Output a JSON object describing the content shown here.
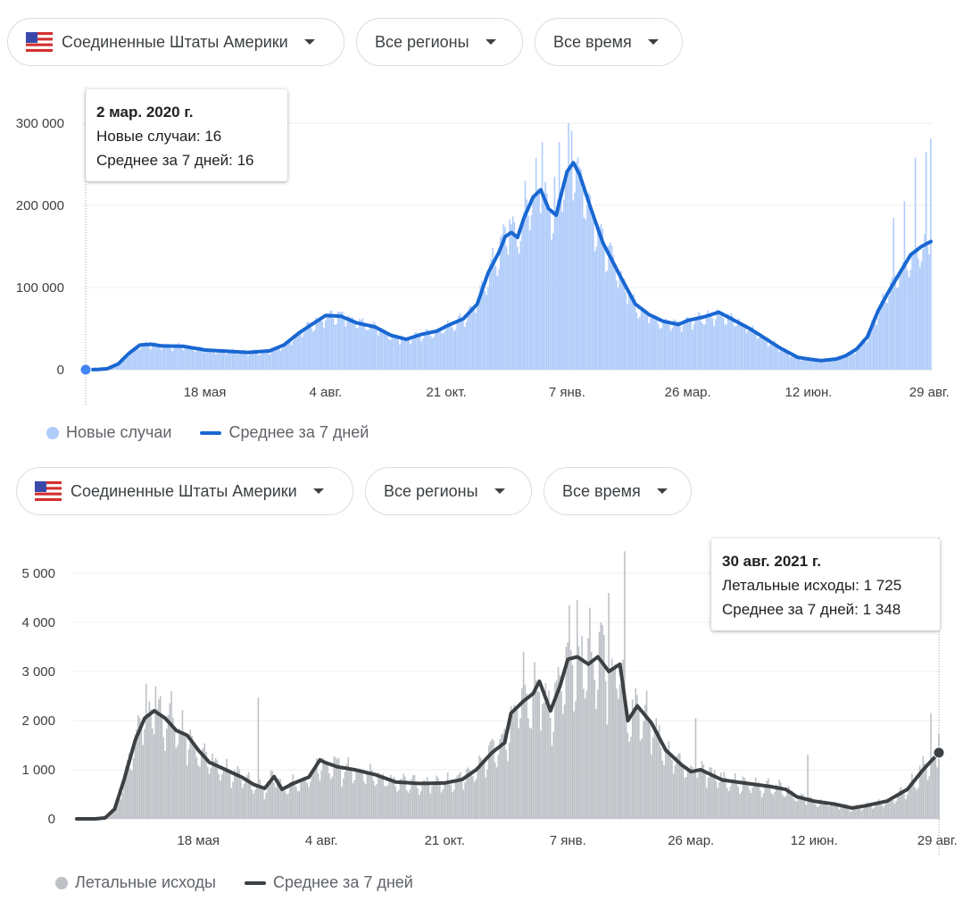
{
  "panel1": {
    "filters": {
      "country": "Соединенные Штаты Америки",
      "region": "Все регионы",
      "period": "Все время"
    },
    "tooltip": {
      "title": "2 мар. 2020 г.",
      "line1": "Новые случаи: 16",
      "line2": "Среднее за 7 дней: 16"
    },
    "legend": {
      "bars": "Новые случаи",
      "line": "Среднее за 7 дней"
    },
    "colors": {
      "bars": "#aecbfa",
      "line": "#1967d2",
      "marker": "#4285f4"
    }
  },
  "panel2": {
    "filters": {
      "country": "Соединенные Штаты Америки",
      "region": "Все регионы",
      "period": "Все время"
    },
    "tooltip": {
      "title": "30 авг. 2021 г.",
      "line1": "Летальные исходы: 1 725",
      "line2": "Среднее за 7 дней: 1 348"
    },
    "legend": {
      "bars": "Летальные исходы",
      "line": "Среднее за 7 дней"
    },
    "colors": {
      "bars": "#bdc1c6",
      "line": "#3c4043",
      "marker": "#3c4043"
    }
  },
  "chart_data": [
    {
      "type": "bar",
      "title": "",
      "x_start": "2020-03-02",
      "x_end": "2021-08-30",
      "x_tick_labels": [
        "18 мая",
        "4 авг.",
        "21 окт.",
        "7 янв.",
        "26 мар.",
        "12 июн.",
        "29 авг."
      ],
      "x_tick_dates": [
        "2020-05-18",
        "2020-08-04",
        "2020-10-21",
        "2021-01-07",
        "2021-03-26",
        "2021-06-12",
        "2021-08-29"
      ],
      "y_ticks": [
        0,
        100000,
        200000,
        300000
      ],
      "y_tick_labels": [
        "0",
        "100 000",
        "200 000",
        "300 000"
      ],
      "ylim": [
        0,
        300000
      ],
      "grid": true,
      "legend_position": "bottom-left",
      "highlight_date": "2020-03-02",
      "series": [
        {
          "name": "Среднее за 7 дней",
          "kind": "line",
          "points": [
            [
              "2020-03-02",
              16
            ],
            [
              "2020-03-09",
              200
            ],
            [
              "2020-03-16",
              1200
            ],
            [
              "2020-03-23",
              7000
            ],
            [
              "2020-03-30",
              20000
            ],
            [
              "2020-04-06",
              30000
            ],
            [
              "2020-04-13",
              31000
            ],
            [
              "2020-04-20",
              29000
            ],
            [
              "2020-05-04",
              28500
            ],
            [
              "2020-05-18",
              24000
            ],
            [
              "2020-06-01",
              22500
            ],
            [
              "2020-06-15",
              21000
            ],
            [
              "2020-06-29",
              23000
            ],
            [
              "2020-07-08",
              30000
            ],
            [
              "2020-07-18",
              45000
            ],
            [
              "2020-07-26",
              55000
            ],
            [
              "2020-08-04",
              66000
            ],
            [
              "2020-08-14",
              65000
            ],
            [
              "2020-08-24",
              57000
            ],
            [
              "2020-09-05",
              52000
            ],
            [
              "2020-09-15",
              42000
            ],
            [
              "2020-09-25",
              37000
            ],
            [
              "2020-10-05",
              43000
            ],
            [
              "2020-10-15",
              47000
            ],
            [
              "2020-10-21",
              53000
            ],
            [
              "2020-11-01",
              62000
            ],
            [
              "2020-11-10",
              80000
            ],
            [
              "2020-11-17",
              118000
            ],
            [
              "2020-11-24",
              143000
            ],
            [
              "2020-11-28",
              162000
            ],
            [
              "2020-12-02",
              167000
            ],
            [
              "2020-12-06",
              161000
            ],
            [
              "2020-12-10",
              184000
            ],
            [
              "2020-12-16",
              210000
            ],
            [
              "2020-12-21",
              219000
            ],
            [
              "2020-12-26",
              196000
            ],
            [
              "2020-12-31",
              188000
            ],
            [
              "2021-01-03",
              212000
            ],
            [
              "2021-01-07",
              241000
            ],
            [
              "2021-01-11",
              252000
            ],
            [
              "2021-01-15",
              238000
            ],
            [
              "2021-01-22",
              198000
            ],
            [
              "2021-01-30",
              155000
            ],
            [
              "2021-02-10",
              115000
            ],
            [
              "2021-02-20",
              80000
            ],
            [
              "2021-03-01",
              67000
            ],
            [
              "2021-03-10",
              59000
            ],
            [
              "2021-03-20",
              55000
            ],
            [
              "2021-03-26",
              60000
            ],
            [
              "2021-04-05",
              64000
            ],
            [
              "2021-04-15",
              70000
            ],
            [
              "2021-04-25",
              60000
            ],
            [
              "2021-05-05",
              50000
            ],
            [
              "2021-05-15",
              38000
            ],
            [
              "2021-05-25",
              26000
            ],
            [
              "2021-06-05",
              15000
            ],
            [
              "2021-06-12",
              13000
            ],
            [
              "2021-06-20",
              11000
            ],
            [
              "2021-06-30",
              13000
            ],
            [
              "2021-07-06",
              17000
            ],
            [
              "2021-07-13",
              25000
            ],
            [
              "2021-07-20",
              40000
            ],
            [
              "2021-07-27",
              72000
            ],
            [
              "2021-08-03",
              96000
            ],
            [
              "2021-08-10",
              118000
            ],
            [
              "2021-08-17",
              140000
            ],
            [
              "2021-08-24",
              150000
            ],
            [
              "2021-08-30",
              156000
            ]
          ]
        },
        {
          "name": "Новые случаи",
          "kind": "bars",
          "spikes": [
            [
              "2020-12-01",
              183000
            ],
            [
              "2020-12-11",
              230000
            ],
            [
              "2020-12-18",
              258000
            ],
            [
              "2020-12-22",
              277000
            ],
            [
              "2020-12-30",
              235000
            ],
            [
              "2021-01-02",
              277000
            ],
            [
              "2021-01-08",
              300000
            ],
            [
              "2021-01-10",
              291000
            ],
            [
              "2021-08-06",
              185000
            ],
            [
              "2021-08-13",
              205000
            ],
            [
              "2021-08-20",
              258000
            ],
            [
              "2021-08-27",
              265000
            ],
            [
              "2021-08-30",
              281000
            ]
          ]
        }
      ]
    },
    {
      "type": "bar",
      "title": "",
      "x_start": "2020-03-02",
      "x_end": "2021-08-30",
      "x_tick_labels": [
        "18 мая",
        "4 авг.",
        "21 окт.",
        "7 янв.",
        "26 мар.",
        "12 июн.",
        "29 авг."
      ],
      "x_tick_dates": [
        "2020-05-18",
        "2020-08-04",
        "2020-10-21",
        "2021-01-07",
        "2021-03-26",
        "2021-06-12",
        "2021-08-29"
      ],
      "y_ticks": [
        0,
        1000,
        2000,
        3000,
        4000,
        5000
      ],
      "y_tick_labels": [
        "0",
        "1 000",
        "2 000",
        "3 000",
        "4 000",
        "5 000"
      ],
      "ylim": [
        0,
        5000
      ],
      "grid": true,
      "legend_position": "bottom-left",
      "highlight_date": "2021-08-30",
      "series": [
        {
          "name": "Среднее за 7 дней",
          "kind": "line",
          "points": [
            [
              "2020-03-02",
              0
            ],
            [
              "2020-03-14",
              0
            ],
            [
              "2020-03-20",
              20
            ],
            [
              "2020-03-26",
              200
            ],
            [
              "2020-04-01",
              800
            ],
            [
              "2020-04-08",
              1600
            ],
            [
              "2020-04-14",
              2050
            ],
            [
              "2020-04-20",
              2200
            ],
            [
              "2020-04-27",
              2050
            ],
            [
              "2020-05-04",
              1800
            ],
            [
              "2020-05-11",
              1700
            ],
            [
              "2020-05-18",
              1400
            ],
            [
              "2020-05-25",
              1150
            ],
            [
              "2020-06-01",
              1050
            ],
            [
              "2020-06-15",
              840
            ],
            [
              "2020-06-22",
              700
            ],
            [
              "2020-06-29",
              620
            ],
            [
              "2020-07-05",
              860
            ],
            [
              "2020-07-10",
              600
            ],
            [
              "2020-07-17",
              720
            ],
            [
              "2020-07-27",
              850
            ],
            [
              "2020-08-03",
              1200
            ],
            [
              "2020-08-06",
              1150
            ],
            [
              "2020-08-14",
              1060
            ],
            [
              "2020-08-25",
              1000
            ],
            [
              "2020-09-07",
              900
            ],
            [
              "2020-09-20",
              750
            ],
            [
              "2020-10-05",
              720
            ],
            [
              "2020-10-21",
              730
            ],
            [
              "2020-11-01",
              800
            ],
            [
              "2020-11-10",
              1000
            ],
            [
              "2020-11-20",
              1350
            ],
            [
              "2020-11-28",
              1550
            ],
            [
              "2020-12-02",
              2150
            ],
            [
              "2020-12-10",
              2400
            ],
            [
              "2020-12-16",
              2550
            ],
            [
              "2020-12-20",
              2800
            ],
            [
              "2020-12-27",
              2200
            ],
            [
              "2021-01-02",
              2700
            ],
            [
              "2021-01-07",
              3250
            ],
            [
              "2021-01-13",
              3300
            ],
            [
              "2021-01-20",
              3150
            ],
            [
              "2021-01-26",
              3300
            ],
            [
              "2021-02-02",
              3000
            ],
            [
              "2021-02-09",
              3150
            ],
            [
              "2021-02-14",
              2000
            ],
            [
              "2021-02-20",
              2300
            ],
            [
              "2021-03-01",
              1950
            ],
            [
              "2021-03-10",
              1400
            ],
            [
              "2021-03-20",
              1100
            ],
            [
              "2021-03-26",
              960
            ],
            [
              "2021-04-01",
              1000
            ],
            [
              "2021-04-15",
              790
            ],
            [
              "2021-05-01",
              720
            ],
            [
              "2021-05-15",
              660
            ],
            [
              "2021-05-25",
              600
            ],
            [
              "2021-06-01",
              450
            ],
            [
              "2021-06-12",
              360
            ],
            [
              "2021-06-25",
              300
            ],
            [
              "2021-07-06",
              220
            ],
            [
              "2021-07-15",
              270
            ],
            [
              "2021-07-28",
              360
            ],
            [
              "2021-08-10",
              600
            ],
            [
              "2021-08-20",
              1000
            ],
            [
              "2021-08-30",
              1348
            ]
          ]
        },
        {
          "name": "Летальные исходы",
          "kind": "bars",
          "spikes": [
            [
              "2020-04-15",
              2750
            ],
            [
              "2020-04-21",
              2700
            ],
            [
              "2020-05-01",
              2600
            ],
            [
              "2020-06-25",
              2470
            ],
            [
              "2020-12-10",
              3400
            ],
            [
              "2021-01-08",
              4350
            ],
            [
              "2021-01-13",
              4450
            ],
            [
              "2021-01-21",
              4300
            ],
            [
              "2021-01-28",
              4000
            ],
            [
              "2021-02-02",
              4600
            ],
            [
              "2021-02-12",
              5450
            ],
            [
              "2021-03-29",
              2050
            ],
            [
              "2021-06-08",
              1300
            ],
            [
              "2021-08-25",
              2150
            ],
            [
              "2021-08-30",
              1725
            ]
          ]
        }
      ]
    }
  ]
}
